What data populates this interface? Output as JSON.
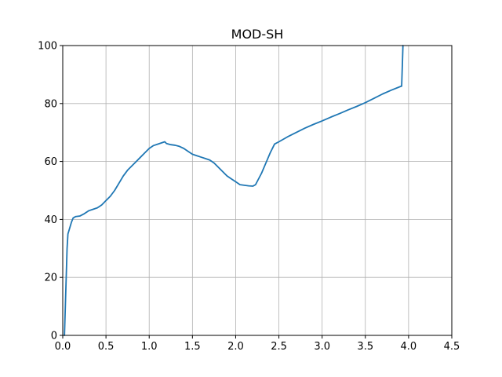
{
  "chart_data": {
    "type": "line",
    "title": "MOD-SH",
    "xlabel": "",
    "ylabel": "",
    "xlim": [
      0.0,
      4.5
    ],
    "ylim": [
      0,
      100
    ],
    "xticks": [
      "0.0",
      "0.5",
      "1.0",
      "1.5",
      "2.0",
      "2.5",
      "3.0",
      "3.5",
      "4.0",
      "4.5"
    ],
    "yticks": [
      "0",
      "20",
      "40",
      "60",
      "80",
      "100"
    ],
    "grid": true,
    "line_color": "#1f77b4",
    "series": [
      {
        "x": [
          0.02,
          0.05,
          0.06,
          0.08,
          0.1,
          0.12,
          0.15,
          0.2,
          0.25,
          0.3,
          0.35,
          0.4,
          0.45,
          0.5,
          0.55,
          0.6,
          0.65,
          0.7,
          0.75,
          0.8,
          0.85,
          0.9,
          0.95,
          1.0,
          1.05,
          1.1,
          1.15,
          1.18,
          1.2,
          1.25,
          1.3,
          1.35,
          1.4,
          1.45,
          1.5,
          1.55,
          1.6,
          1.65,
          1.7,
          1.75,
          1.8,
          1.85,
          1.9,
          1.95,
          2.0,
          2.05,
          2.1,
          2.15,
          2.2,
          2.23,
          2.3,
          2.35,
          2.4,
          2.45,
          2.5,
          2.6,
          2.7,
          2.8,
          2.9,
          3.0,
          3.1,
          3.2,
          3.3,
          3.4,
          3.5,
          3.6,
          3.7,
          3.8,
          3.9,
          3.92,
          3.93,
          3.935
        ],
        "y": [
          0,
          30,
          35,
          37,
          39,
          40.5,
          41,
          41.2,
          42,
          43,
          43.5,
          44,
          45,
          46.5,
          48,
          50,
          52.5,
          55,
          57,
          58.5,
          60,
          61.5,
          63,
          64.5,
          65.5,
          66,
          66.5,
          66.8,
          66.2,
          65.8,
          65.6,
          65.2,
          64.5,
          63.5,
          62.5,
          62,
          61.5,
          61,
          60.5,
          59.5,
          58,
          56.5,
          55,
          54,
          53,
          52,
          51.8,
          51.6,
          51.5,
          52,
          56,
          59.5,
          63,
          66,
          66.8,
          68.5,
          70,
          71.5,
          72.8,
          74,
          75.3,
          76.5,
          77.8,
          79,
          80.3,
          81.8,
          83.3,
          84.6,
          85.8,
          86,
          95,
          100
        ]
      }
    ]
  }
}
